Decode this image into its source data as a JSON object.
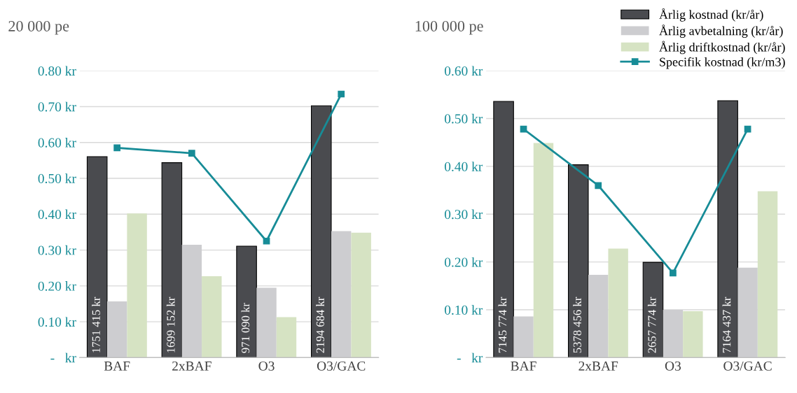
{
  "chart_data": [
    {
      "type": "bar",
      "title": "20 000 pe",
      "categories": [
        "BAF",
        "2xBAF",
        "O3",
        "O3/GAC"
      ],
      "ylim": [
        0,
        0.8
      ],
      "yticks": [
        {
          "value": 0,
          "label": "-   kr"
        },
        {
          "value": 0.1,
          "label": "0.10 kr"
        },
        {
          "value": 0.2,
          "label": "0.20 kr"
        },
        {
          "value": 0.3,
          "label": "0.30 kr"
        },
        {
          "value": 0.4,
          "label": "0.40 kr"
        },
        {
          "value": 0.5,
          "label": "0.50 kr"
        },
        {
          "value": 0.6,
          "label": "0.60 kr"
        },
        {
          "value": 0.7,
          "label": "0.70 kr"
        },
        {
          "value": 0.8,
          "label": "0.80 kr"
        }
      ],
      "y2lim": [
        0,
        2500000
      ],
      "grid": "y",
      "series": [
        {
          "axis": "y2",
          "color": "#4a4b4f",
          "values": [
            1751415,
            1699152,
            971090,
            2194684
          ],
          "value_labels": [
            "1751 415 kr",
            "1699 152 kr",
            "971 090 kr",
            "2194 684 kr"
          ]
        },
        {
          "axis": "y2",
          "color": "#cdcdd0",
          "values": [
            490000,
            984000,
            609000,
            1103000
          ]
        },
        {
          "axis": "y2",
          "color": "#d6e3c3",
          "values": [
            1256000,
            709000,
            353000,
            1088000
          ]
        },
        {
          "type": "line",
          "axis": "y",
          "color": "#178c97",
          "marker": "square",
          "values": [
            0.585,
            0.57,
            0.325,
            0.735
          ]
        }
      ]
    },
    {
      "type": "bar",
      "title": "100 000 pe",
      "categories": [
        "BAF",
        "2xBAF",
        "O3",
        "O3/GAC"
      ],
      "ylim": [
        0,
        0.6
      ],
      "yticks": [
        {
          "value": 0,
          "label": "-   kr"
        },
        {
          "value": 0.1,
          "label": "0.10 kr"
        },
        {
          "value": 0.2,
          "label": "0.20 kr"
        },
        {
          "value": 0.3,
          "label": "0.30 kr"
        },
        {
          "value": 0.4,
          "label": "0.40 kr"
        },
        {
          "value": 0.5,
          "label": "0.50 kr"
        },
        {
          "value": 0.6,
          "label": "0.60 kr"
        }
      ],
      "y2lim": [
        0,
        8000000
      ],
      "grid": "y",
      "legend": "top right",
      "series": [
        {
          "axis": "y2",
          "name": "Årlig kostnad (kr/år)",
          "color": "#4a4b4f",
          "values": [
            7145774,
            5378456,
            2657774,
            7164437
          ],
          "value_labels": [
            "7145 774 kr",
            "5378 456 kr",
            "2657 774 kr",
            "7164 437 kr"
          ]
        },
        {
          "axis": "y2",
          "name": "Årlig avbetalning (kr/år)",
          "color": "#cdcdd0",
          "values": [
            1147000,
            2307000,
            1333000,
            2507000
          ]
        },
        {
          "axis": "y2",
          "name": "Årlig driftkostnad (kr/år)",
          "color": "#d6e3c3",
          "values": [
            5987000,
            3040000,
            1293000,
            4640000
          ]
        },
        {
          "type": "line",
          "axis": "y",
          "name": "Specifik kostnad (kr/m3)",
          "color": "#178c97",
          "marker": "square",
          "values": [
            0.478,
            0.36,
            0.177,
            0.478
          ]
        }
      ]
    }
  ]
}
